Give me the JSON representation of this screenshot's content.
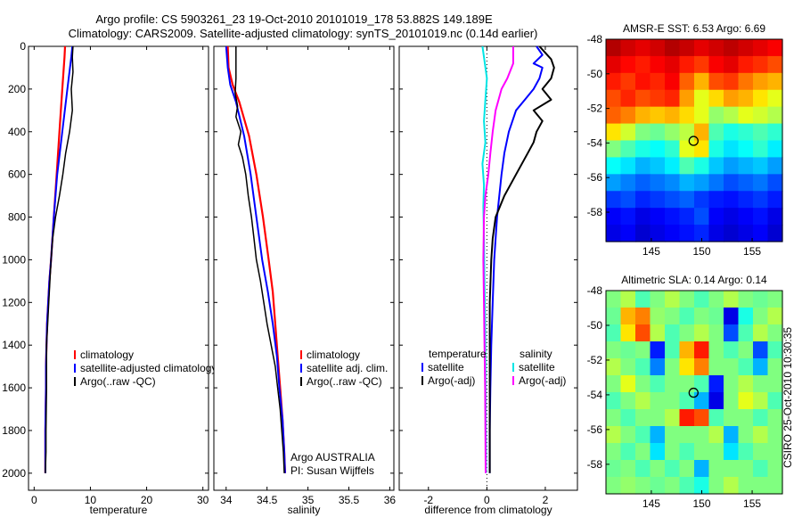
{
  "header": {
    "title_line1": "Argo profile: CS 5903261_23 19-Oct-2010 20101019_178 53.882S 149.189E",
    "title_line2": "Climatology: CARS2009. Satellite-adjusted climatology: synTS_20101019.nc (0.14d earlier)"
  },
  "colors": {
    "climatology": "#ff0000",
    "satellite": "#0000ff",
    "argo": "#000000",
    "sat_sal": "#00e5e5",
    "argo_adj_sal": "#ff00ff"
  },
  "credit": "CSIRO 25-Oct-2010 10:30:35",
  "chart_data": [
    {
      "id": "temperature",
      "type": "line",
      "xlabel": "temperature",
      "xlim": [
        -1,
        31
      ],
      "ylim": [
        0,
        2080
      ],
      "xticks": [
        0,
        10,
        20,
        30
      ],
      "yticks": [
        0,
        200,
        400,
        600,
        800,
        1000,
        1200,
        1400,
        1600,
        1800,
        2000
      ],
      "legend": [
        "climatology",
        "satellite-adjusted climatology",
        "Argo(..raw -QC)"
      ],
      "series": [
        {
          "name": "climatology",
          "color": "#ff0000",
          "width": 2.2,
          "x": [
            5.5,
            5.4,
            5.0,
            4.5,
            4.0,
            3.5,
            3.0,
            2.7,
            2.5,
            2.3,
            2.2,
            2.1,
            2.1,
            2.0,
            2.0
          ],
          "y": [
            0,
            50,
            200,
            400,
            600,
            800,
            1000,
            1100,
            1200,
            1300,
            1400,
            1500,
            1600,
            1800,
            2000
          ]
        },
        {
          "name": "satellite-adjusted climatology",
          "color": "#0000ff",
          "width": 2,
          "x": [
            6.8,
            6.6,
            5.9,
            5.0,
            4.1,
            3.5,
            3.0,
            2.7,
            2.5,
            2.3,
            2.2,
            2.1,
            2.1,
            2.0,
            2.0
          ],
          "y": [
            0,
            50,
            200,
            400,
            600,
            800,
            1000,
            1100,
            1200,
            1300,
            1400,
            1500,
            1600,
            1800,
            2000
          ]
        },
        {
          "name": "Argo(..raw -QC)",
          "color": "#000000",
          "width": 1.5,
          "x": [
            6.9,
            6.8,
            6.9,
            6.6,
            6.8,
            6.3,
            5.6,
            5.1,
            4.5,
            3.8,
            3.3,
            3.0,
            2.8,
            2.6,
            2.4,
            2.2,
            2.2,
            2.1,
            2.1,
            2.0
          ],
          "y": [
            0,
            50,
            120,
            200,
            300,
            400,
            500,
            600,
            700,
            800,
            900,
            1000,
            1100,
            1200,
            1300,
            1400,
            1600,
            1800,
            1900,
            2000
          ]
        }
      ]
    },
    {
      "id": "salinity",
      "type": "line",
      "xlabel": "salinity",
      "xlim": [
        33.85,
        36.05
      ],
      "ylim": [
        0,
        2080
      ],
      "xticks": [
        34,
        34.5,
        35,
        35.5,
        36
      ],
      "yticks": [
        0,
        200,
        400,
        600,
        800,
        1000,
        1200,
        1400,
        1600,
        1800,
        2000
      ],
      "legend": [
        "climatology",
        "satellite adj. clim.",
        "Argo(..raw -QC)"
      ],
      "notes": [
        "Argo AUSTRALIA",
        "PI: Susan Wijffels"
      ],
      "series": [
        {
          "name": "climatology",
          "color": "#ff0000",
          "width": 2.2,
          "x": [
            34.02,
            34.03,
            34.08,
            34.16,
            34.28,
            34.37,
            34.45,
            34.52,
            34.57,
            34.6,
            34.63,
            34.66,
            34.69,
            34.71,
            34.72
          ],
          "y": [
            0,
            100,
            180,
            260,
            420,
            600,
            800,
            1000,
            1150,
            1300,
            1450,
            1600,
            1750,
            1900,
            2000
          ]
        },
        {
          "name": "satellite adj. clim.",
          "color": "#0000ff",
          "width": 2,
          "x": [
            34.0,
            34.02,
            34.05,
            34.12,
            34.22,
            34.3,
            34.37,
            34.44,
            34.51,
            34.57,
            34.62,
            34.65,
            34.69,
            34.71,
            34.72
          ],
          "y": [
            0,
            100,
            180,
            260,
            420,
            600,
            800,
            1000,
            1150,
            1300,
            1450,
            1600,
            1750,
            1900,
            2000
          ]
        },
        {
          "name": "Argo(..raw -QC)",
          "color": "#000000",
          "width": 1.5,
          "x": [
            34.12,
            34.12,
            34.12,
            34.11,
            34.14,
            34.12,
            34.18,
            34.15,
            34.2,
            34.24,
            34.27,
            34.31,
            34.34,
            34.37,
            34.42,
            34.46,
            34.5,
            34.55,
            34.6,
            34.63,
            34.66,
            34.68,
            34.7,
            34.71
          ],
          "y": [
            0,
            80,
            150,
            220,
            280,
            330,
            400,
            460,
            520,
            600,
            700,
            800,
            900,
            1000,
            1100,
            1200,
            1300,
            1400,
            1500,
            1600,
            1700,
            1800,
            1900,
            2000
          ]
        }
      ]
    },
    {
      "id": "difference",
      "type": "line",
      "xlabel": "difference from climatology",
      "xlim": [
        -3,
        3.1
      ],
      "ylim": [
        0,
        2080
      ],
      "xticks": [
        -2,
        0,
        2
      ],
      "yticks": [
        0,
        200,
        400,
        600,
        800,
        1000,
        1200,
        1400,
        1600,
        1800,
        2000
      ],
      "legend_left_header": "temperature",
      "legend_right_header": "salinity",
      "legend_left": [
        "satellite",
        "Argo(-adj)"
      ],
      "legend_right": [
        "satellite",
        "Argo(-adj)"
      ],
      "series": [
        {
          "name": "temperature satellite",
          "color": "#0000ff",
          "width": 2,
          "x": [
            1.7,
            1.9,
            1.6,
            1.9,
            1.8,
            1.6,
            1.3,
            1.0,
            0.75,
            0.6,
            0.5,
            0.35,
            0.25,
            0.2,
            0.15,
            0.12,
            0.1,
            0.1,
            0.1
          ],
          "y": [
            0,
            40,
            80,
            100,
            150,
            200,
            250,
            300,
            400,
            500,
            600,
            800,
            1000,
            1200,
            1400,
            1600,
            1800,
            1900,
            2000
          ]
        },
        {
          "name": "temperature Argo(-adj)",
          "color": "#000000",
          "width": 2,
          "x": [
            1.8,
            2.0,
            2.2,
            2.3,
            2.2,
            1.9,
            2.2,
            1.6,
            1.9,
            1.7,
            1.6,
            1.4,
            1.0,
            0.6,
            0.3,
            0.2,
            0.15,
            0.1,
            0.1,
            0.1,
            0.1
          ],
          "y": [
            0,
            30,
            60,
            100,
            150,
            200,
            250,
            300,
            350,
            400,
            450,
            500,
            600,
            700,
            800,
            900,
            1000,
            1200,
            1600,
            1800,
            2000
          ]
        },
        {
          "name": "salinity satellite",
          "color": "#00e5e5",
          "width": 2,
          "x": [
            -0.15,
            -0.1,
            0.0,
            -0.05,
            -0.1,
            -0.05,
            -0.15,
            -0.1,
            -0.12,
            -0.1,
            -0.08,
            -0.06,
            -0.05,
            -0.04,
            -0.03,
            -0.03
          ],
          "y": [
            0,
            50,
            150,
            250,
            350,
            450,
            550,
            650,
            750,
            900,
            1100,
            1300,
            1500,
            1700,
            1900,
            2000
          ]
        },
        {
          "name": "salinity Argo(-adj)",
          "color": "#ff00ff",
          "width": 2,
          "x": [
            0.9,
            0.9,
            0.7,
            0.5,
            0.3,
            0.2,
            0.12,
            0.05,
            -0.05,
            -0.1,
            -0.12,
            -0.1,
            -0.08,
            -0.06,
            -0.05,
            -0.04
          ],
          "y": [
            0,
            80,
            150,
            200,
            300,
            400,
            500,
            600,
            700,
            800,
            1000,
            1200,
            1400,
            1600,
            1800,
            2000
          ]
        }
      ]
    },
    {
      "id": "sst_map",
      "type": "heatmap",
      "title": "AMSR-E SST: 6.53 Argo: 6.69",
      "xlim": [
        140.5,
        158
      ],
      "ylim": [
        -59.7,
        -48
      ],
      "xticks": [
        145,
        150,
        155
      ],
      "yticks": [
        -48,
        -50,
        -52,
        -54,
        -56,
        -58
      ],
      "argo_position": {
        "lon": 149.19,
        "lat": -53.88
      },
      "grid": [
        [
          0.95,
          0.92,
          0.9,
          0.92,
          0.95,
          0.93,
          0.9,
          0.92,
          0.94,
          0.92,
          0.9,
          0.88
        ],
        [
          0.9,
          0.87,
          0.85,
          0.88,
          0.9,
          0.85,
          0.82,
          0.88,
          0.9,
          0.85,
          0.83,
          0.8
        ],
        [
          0.85,
          0.82,
          0.86,
          0.84,
          0.88,
          0.78,
          0.7,
          0.8,
          0.82,
          0.76,
          0.72,
          0.7
        ],
        [
          0.8,
          0.84,
          0.8,
          0.82,
          0.84,
          0.72,
          0.6,
          0.66,
          0.72,
          0.7,
          0.65,
          0.6
        ],
        [
          0.78,
          0.75,
          0.7,
          0.68,
          0.7,
          0.66,
          0.6,
          0.52,
          0.55,
          0.6,
          0.58,
          0.55
        ],
        [
          0.65,
          0.58,
          0.5,
          0.48,
          0.52,
          0.56,
          0.7,
          0.45,
          0.4,
          0.42,
          0.45,
          0.42
        ],
        [
          0.5,
          0.45,
          0.4,
          0.38,
          0.42,
          0.6,
          0.65,
          0.4,
          0.35,
          0.38,
          0.42,
          0.36
        ],
        [
          0.38,
          0.35,
          0.3,
          0.32,
          0.36,
          0.45,
          0.4,
          0.32,
          0.28,
          0.3,
          0.32,
          0.28
        ],
        [
          0.28,
          0.25,
          0.22,
          0.24,
          0.26,
          0.3,
          0.28,
          0.24,
          0.2,
          0.22,
          0.24,
          0.2
        ],
        [
          0.18,
          0.2,
          0.16,
          0.18,
          0.2,
          0.22,
          0.18,
          0.15,
          0.14,
          0.16,
          0.18,
          0.15
        ],
        [
          0.12,
          0.14,
          0.1,
          0.12,
          0.14,
          0.16,
          0.2,
          0.12,
          0.1,
          0.12,
          0.14,
          0.1
        ],
        [
          0.1,
          0.12,
          0.08,
          0.1,
          0.12,
          0.14,
          0.16,
          0.1,
          0.08,
          0.1,
          0.12,
          0.08
        ]
      ]
    },
    {
      "id": "sla_map",
      "type": "heatmap",
      "title": "Altimetric SLA: 0.14 Argo: 0.14",
      "xlim": [
        140.5,
        158
      ],
      "ylim": [
        -59.7,
        -48
      ],
      "xticks": [
        145,
        150,
        155
      ],
      "yticks": [
        -48,
        -50,
        -52,
        -54,
        -56,
        -58
      ],
      "argo_position": {
        "lon": 149.19,
        "lat": -53.88
      },
      "grid": [
        [
          0.5,
          0.55,
          0.45,
          0.5,
          0.55,
          0.5,
          0.45,
          0.5,
          0.55,
          0.5,
          0.48,
          0.5
        ],
        [
          0.48,
          0.7,
          0.75,
          0.52,
          0.5,
          0.45,
          0.5,
          0.48,
          0.1,
          0.4,
          0.5,
          0.55
        ],
        [
          0.45,
          0.65,
          0.8,
          0.55,
          0.45,
          0.5,
          0.55,
          0.5,
          0.2,
          0.45,
          0.55,
          0.5
        ],
        [
          0.5,
          0.48,
          0.5,
          0.15,
          0.45,
          0.7,
          0.85,
          0.5,
          0.45,
          0.5,
          0.2,
          0.45
        ],
        [
          0.55,
          0.5,
          0.45,
          0.25,
          0.5,
          0.65,
          0.75,
          0.5,
          0.5,
          0.45,
          0.3,
          0.5
        ],
        [
          0.5,
          0.6,
          0.5,
          0.45,
          0.5,
          0.5,
          0.45,
          0.15,
          0.5,
          0.55,
          0.5,
          0.5
        ],
        [
          0.45,
          0.5,
          0.55,
          0.5,
          0.5,
          0.45,
          0.3,
          0.1,
          0.5,
          0.6,
          0.55,
          0.45
        ],
        [
          0.5,
          0.45,
          0.5,
          0.5,
          0.55,
          0.85,
          0.8,
          0.45,
          0.5,
          0.5,
          0.45,
          0.5
        ],
        [
          0.55,
          0.5,
          0.45,
          0.3,
          0.5,
          0.5,
          0.5,
          0.55,
          0.3,
          0.5,
          0.55,
          0.5
        ],
        [
          0.5,
          0.45,
          0.5,
          0.35,
          0.5,
          0.45,
          0.5,
          0.5,
          0.35,
          0.45,
          0.5,
          0.5
        ],
        [
          0.48,
          0.5,
          0.45,
          0.5,
          0.45,
          0.5,
          0.3,
          0.5,
          0.5,
          0.5,
          0.45,
          0.5
        ],
        [
          0.5,
          0.52,
          0.5,
          0.48,
          0.5,
          0.45,
          0.4,
          0.5,
          0.55,
          0.5,
          0.5,
          0.5
        ]
      ]
    }
  ]
}
